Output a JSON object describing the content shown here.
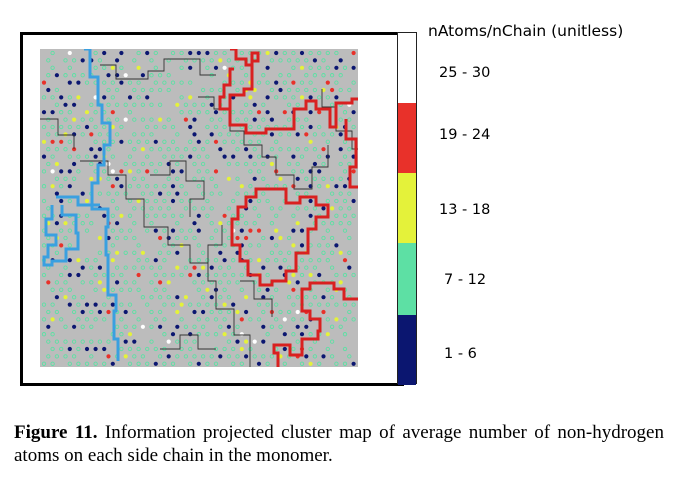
{
  "colorbar": {
    "title": "nAtoms/nChain (unitless)",
    "bins": [
      {
        "label": "25 - 30",
        "color": "#ffffff"
      },
      {
        "label": "19 - 24",
        "color": "#e8312a"
      },
      {
        "label": "13 - 18",
        "color": "#e4f23a"
      },
      {
        "label": "7 - 12",
        "color": "#5de0a4"
      },
      {
        "label": "1 - 6",
        "color": "#0b1670"
      }
    ]
  },
  "map": {
    "background_color": "#bcbcbc",
    "marker_colors": {
      "1 - 6": "#0b1670",
      "7 - 12": "#5de0a4",
      "13 - 18": "#e4f23a",
      "19 - 24": "#e8312a",
      "25 - 30": "#ffffff"
    },
    "boundary_colors": {
      "blue_cluster": "#3aa0e0",
      "red_cluster": "#d92020",
      "thin": "#333333"
    }
  },
  "caption": {
    "label": "Figure 11.",
    "text": " Information projected cluster map of average number of non-hydrogen atoms on each side chain in the monomer."
  }
}
